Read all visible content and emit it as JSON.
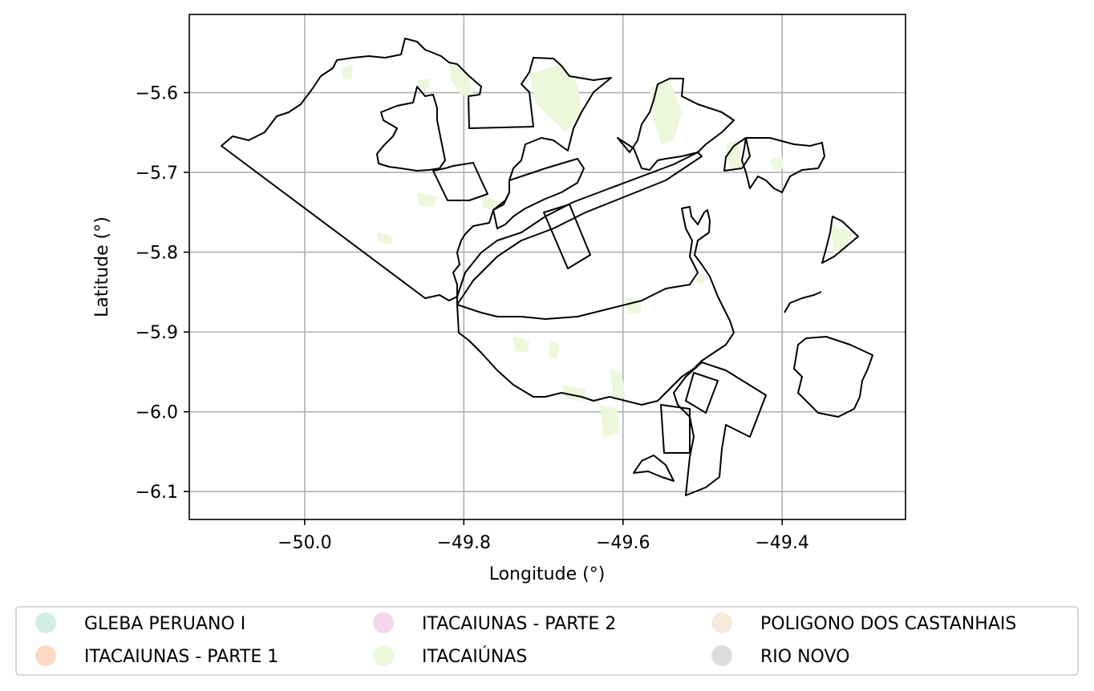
{
  "chart_data": {
    "type": "map",
    "xlabel": "Longitude (°)",
    "ylabel": "Latitude (°)",
    "xlim": [
      -50.145,
      -49.245
    ],
    "ylim": [
      -6.135,
      -5.502
    ],
    "xticks": [
      -50.0,
      -49.8,
      -49.6,
      -49.4
    ],
    "xtick_labels": [
      "−50.0",
      "−49.8",
      "−49.6",
      "−49.4"
    ],
    "yticks": [
      -5.6,
      -5.7,
      -5.8,
      -5.9,
      -6.0,
      -6.1
    ],
    "ytick_labels": [
      "−5.6",
      "−5.7",
      "−5.8",
      "−5.9",
      "−6.0",
      "−6.1"
    ],
    "grid": true,
    "legend_placement": "below",
    "legend": [
      {
        "label": "GLEBA PERUANO I",
        "color": "#d2ede1"
      },
      {
        "label": "ITACAIUNAS - PARTE 1",
        "color": "#fdd9c4"
      },
      {
        "label": "ITACAIUNAS - PARTE 2",
        "color": "#f4d7ec"
      },
      {
        "label": "ITACAIÚNAS",
        "color": "#ecf7dc"
      },
      {
        "label": "POLIGONO DOS CASTANHAIS",
        "color": "#f5ebdc"
      },
      {
        "label": "RIO NOVO",
        "color": "#dddddd"
      }
    ],
    "forest_color": "#ecf7dc",
    "boundary_color": "#000000"
  }
}
